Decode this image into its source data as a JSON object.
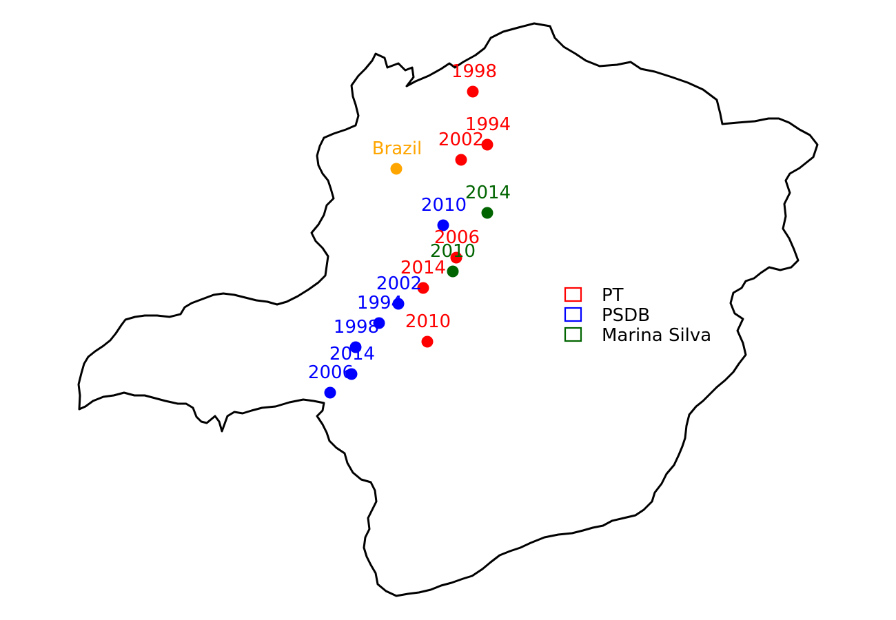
{
  "colors": {
    "PT": "#ff0000",
    "PSDB": "#0000ff",
    "Marina Silva": "#006400",
    "Brazil": "#ffa500",
    "outline": "#000000"
  },
  "legend": [
    {
      "party": "PT",
      "label": "PT"
    },
    {
      "party": "PSDB",
      "label": "PSDB"
    },
    {
      "party": "Marina Silva",
      "label": "Marina Silva"
    }
  ],
  "points": [
    {
      "party": "PT",
      "label": "1998"
    },
    {
      "party": "PT",
      "label": "1994"
    },
    {
      "party": "PT",
      "label": "2002"
    },
    {
      "party": "Brazil",
      "label": "Brazil"
    },
    {
      "party": "Marina Silva",
      "label": "2014"
    },
    {
      "party": "PSDB",
      "label": "2010"
    },
    {
      "party": "PT",
      "label": "2006"
    },
    {
      "party": "Marina Silva",
      "label": "2010"
    },
    {
      "party": "PT",
      "label": "2014"
    },
    {
      "party": "PSDB",
      "label": "2002"
    },
    {
      "party": "PSDB",
      "label": "1994"
    },
    {
      "party": "PSDB",
      "label": "1998"
    },
    {
      "party": "PT",
      "label": "2010"
    },
    {
      "party": "PSDB",
      "label": "2014"
    },
    {
      "party": "PSDB",
      "label": "2006"
    }
  ]
}
